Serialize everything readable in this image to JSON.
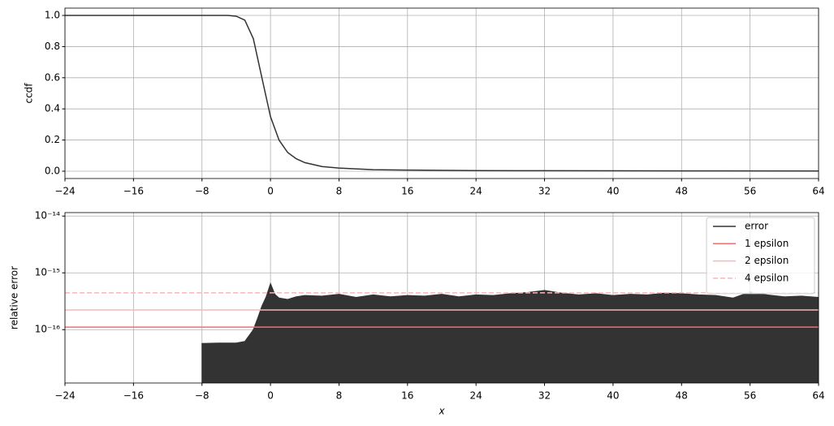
{
  "chart_data": [
    {
      "type": "line",
      "ylabel": "ccdf",
      "x": [
        -24,
        -8,
        -5,
        -4,
        -3,
        -2,
        -1,
        0,
        1,
        2,
        3,
        4,
        6,
        8,
        12,
        16,
        24,
        32,
        48,
        64
      ],
      "series": [
        {
          "color": "#333333",
          "values": [
            1,
            1,
            1,
            0.995,
            0.97,
            0.85,
            0.6,
            0.35,
            0.2,
            0.12,
            0.08,
            0.055,
            0.03,
            0.02,
            0.01,
            0.007,
            0.004,
            0.003,
            0.002,
            0.001
          ]
        }
      ],
      "xlim": [
        -24,
        64
      ],
      "xticks": [
        {
          "value": -24,
          "label": "−24"
        },
        {
          "value": -16,
          "label": "−16"
        },
        {
          "value": -8,
          "label": "−8"
        },
        0,
        8,
        16,
        24,
        32,
        40,
        48,
        56,
        64
      ],
      "ylim": [
        -0.047,
        1.047
      ],
      "yticks": [
        {
          "value": 0,
          "label": "0.0"
        },
        0.2,
        0.4,
        0.6,
        0.8,
        {
          "value": 1,
          "label": "1.0"
        }
      ],
      "grid": true
    },
    {
      "type": "line",
      "log_y": true,
      "xlabel": "x",
      "ylabel": "relative error",
      "legend": "upper right",
      "series": [
        {
          "name": "error",
          "color": "#333333",
          "fill": true,
          "x": [
            -8,
            -6,
            -4,
            -3,
            -2,
            -1.5,
            -1,
            -0.5,
            0,
            0.5,
            1,
            2,
            3,
            4,
            6,
            8,
            10,
            12,
            14,
            16,
            18,
            20,
            22,
            24,
            26,
            28,
            30,
            32,
            34,
            36,
            38,
            40,
            42,
            44,
            46,
            48,
            50,
            52,
            54,
            56,
            58,
            60,
            62,
            64
          ],
          "values": [
            5.7e-17,
            5.8e-17,
            5.8e-17,
            6.2e-17,
            1e-16,
            1.6e-16,
            2.6e-16,
            3.8e-16,
            6.5e-16,
            4.2e-16,
            3.6e-16,
            3.4e-16,
            3.8e-16,
            4e-16,
            3.9e-16,
            4.2e-16,
            3.7e-16,
            4.1e-16,
            3.8e-16,
            4e-16,
            3.9e-16,
            4.2e-16,
            3.8e-16,
            4.1e-16,
            4e-16,
            4.3e-16,
            4.5e-16,
            4.9e-16,
            4.4e-16,
            4.1e-16,
            4.3e-16,
            4e-16,
            4.2e-16,
            4.1e-16,
            4.4e-16,
            4.3e-16,
            4.1e-16,
            4e-16,
            3.6e-16,
            4.6e-16,
            4.1e-16,
            3.8e-16,
            3.9e-16,
            3.7e-16
          ]
        },
        {
          "name": "1 epsilon",
          "color": "#f07070",
          "x": [
            -24,
            64
          ],
          "values": [
            1.11e-16,
            1.11e-16
          ]
        },
        {
          "name": "2 epsilon",
          "color": "#f8b8b8",
          "x": [
            -24,
            64
          ],
          "values": [
            2.22e-16,
            2.22e-16
          ]
        },
        {
          "name": "4 epsilon",
          "color": "#f8b8b8",
          "linestyle": "dashed",
          "x": [
            -24,
            64
          ],
          "values": [
            4.44e-16,
            4.44e-16
          ]
        }
      ],
      "xlim": [
        -24,
        64
      ],
      "xticks": [
        {
          "value": -24,
          "label": "−24"
        },
        {
          "value": -16,
          "label": "−16"
        },
        {
          "value": -8,
          "label": "−8"
        },
        0,
        8,
        16,
        24,
        32,
        40,
        48,
        56,
        64
      ],
      "ylim": [
        1.15e-17,
        1.15e-14
      ],
      "yticks": [
        {
          "value": 1e-16,
          "label": "10⁻¹⁶"
        },
        {
          "value": 1e-15,
          "label": "10⁻¹⁵"
        },
        {
          "value": 1e-14,
          "label": "10⁻¹⁴"
        }
      ],
      "grid": true
    }
  ]
}
